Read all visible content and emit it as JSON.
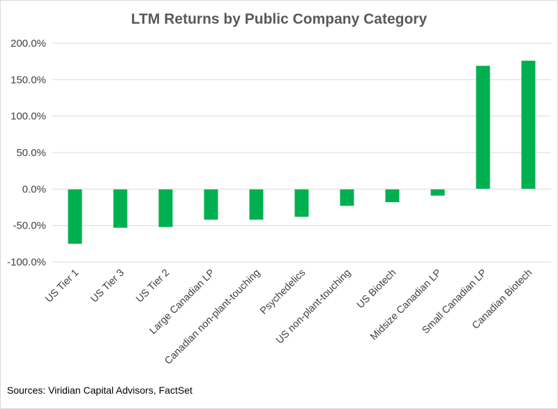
{
  "chart_data": {
    "type": "bar",
    "title": "LTM Returns by Public Company Category",
    "xlabel": "",
    "ylabel": "",
    "categories": [
      "US Tier 1",
      "US Tier 3",
      "US Tier 2",
      "Large Canadian LP",
      "Canadian non-plant-touching",
      "Psychedelics",
      "US non-plant-touching",
      "US Biotech",
      "Midsize Canadian LP",
      "Small Canadian LP",
      "Canadian Biotech"
    ],
    "values": [
      -75,
      -53,
      -52,
      -42,
      -42,
      -38,
      -23,
      -18,
      -9,
      169,
      176
    ],
    "ylim": [
      -100,
      200
    ],
    "yticks": [
      200,
      150,
      100,
      50,
      0,
      -50,
      -100
    ],
    "ytick_labels": [
      "200.0%",
      "150.0%",
      "100.0%",
      "50.0%",
      "0.0%",
      "-50.0%",
      "-100.0%"
    ],
    "grid": true,
    "legend": "none",
    "bar_color": "#00b050"
  },
  "footer": {
    "source": "Sources: Viridian Capital Advisors, FactSet"
  }
}
